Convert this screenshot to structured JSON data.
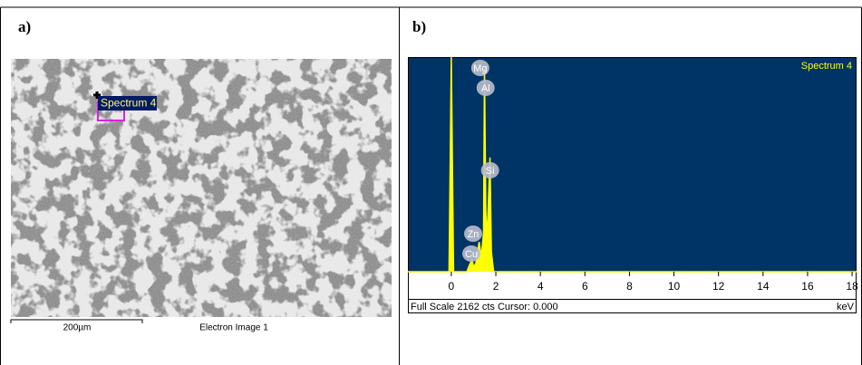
{
  "panel_a": {
    "label": "a)",
    "annotation": "Spectrum 4",
    "scale_bar": "200µm",
    "caption": "Electron Image 1"
  },
  "chart_data": {
    "type": "area",
    "panel_label": "b)",
    "title": "Spectrum 4",
    "color": "#ffff00",
    "background": "#003366",
    "x": [
      -1.95,
      -0.1,
      0,
      0.1,
      0.7,
      0.8,
      0.93,
      1.0,
      1.1,
      1.25,
      1.35,
      1.45,
      1.49,
      1.55,
      1.6,
      1.74,
      1.8,
      1.9,
      18.2
    ],
    "values": [
      0,
      0,
      2162,
      0,
      0,
      60,
      120,
      50,
      80,
      300,
      150,
      400,
      2050,
      600,
      300,
      1150,
      200,
      0,
      0
    ],
    "xlim": [
      -1.95,
      18.2
    ],
    "ylim": [
      0,
      2162
    ],
    "xticks": [
      0,
      2,
      4,
      6,
      8,
      10,
      12,
      14,
      16,
      18
    ],
    "x_unit": "keV",
    "footer": "Full Scale 2162 cts Cursor: 0.000",
    "peak_labels": [
      {
        "label": "Mg",
        "x": 1.3
      },
      {
        "label": "Al",
        "x": 1.54
      },
      {
        "label": "Si",
        "x": 1.74
      },
      {
        "label": "Zn",
        "x": 0.98
      },
      {
        "label": "Cu",
        "x": 0.9
      }
    ]
  }
}
